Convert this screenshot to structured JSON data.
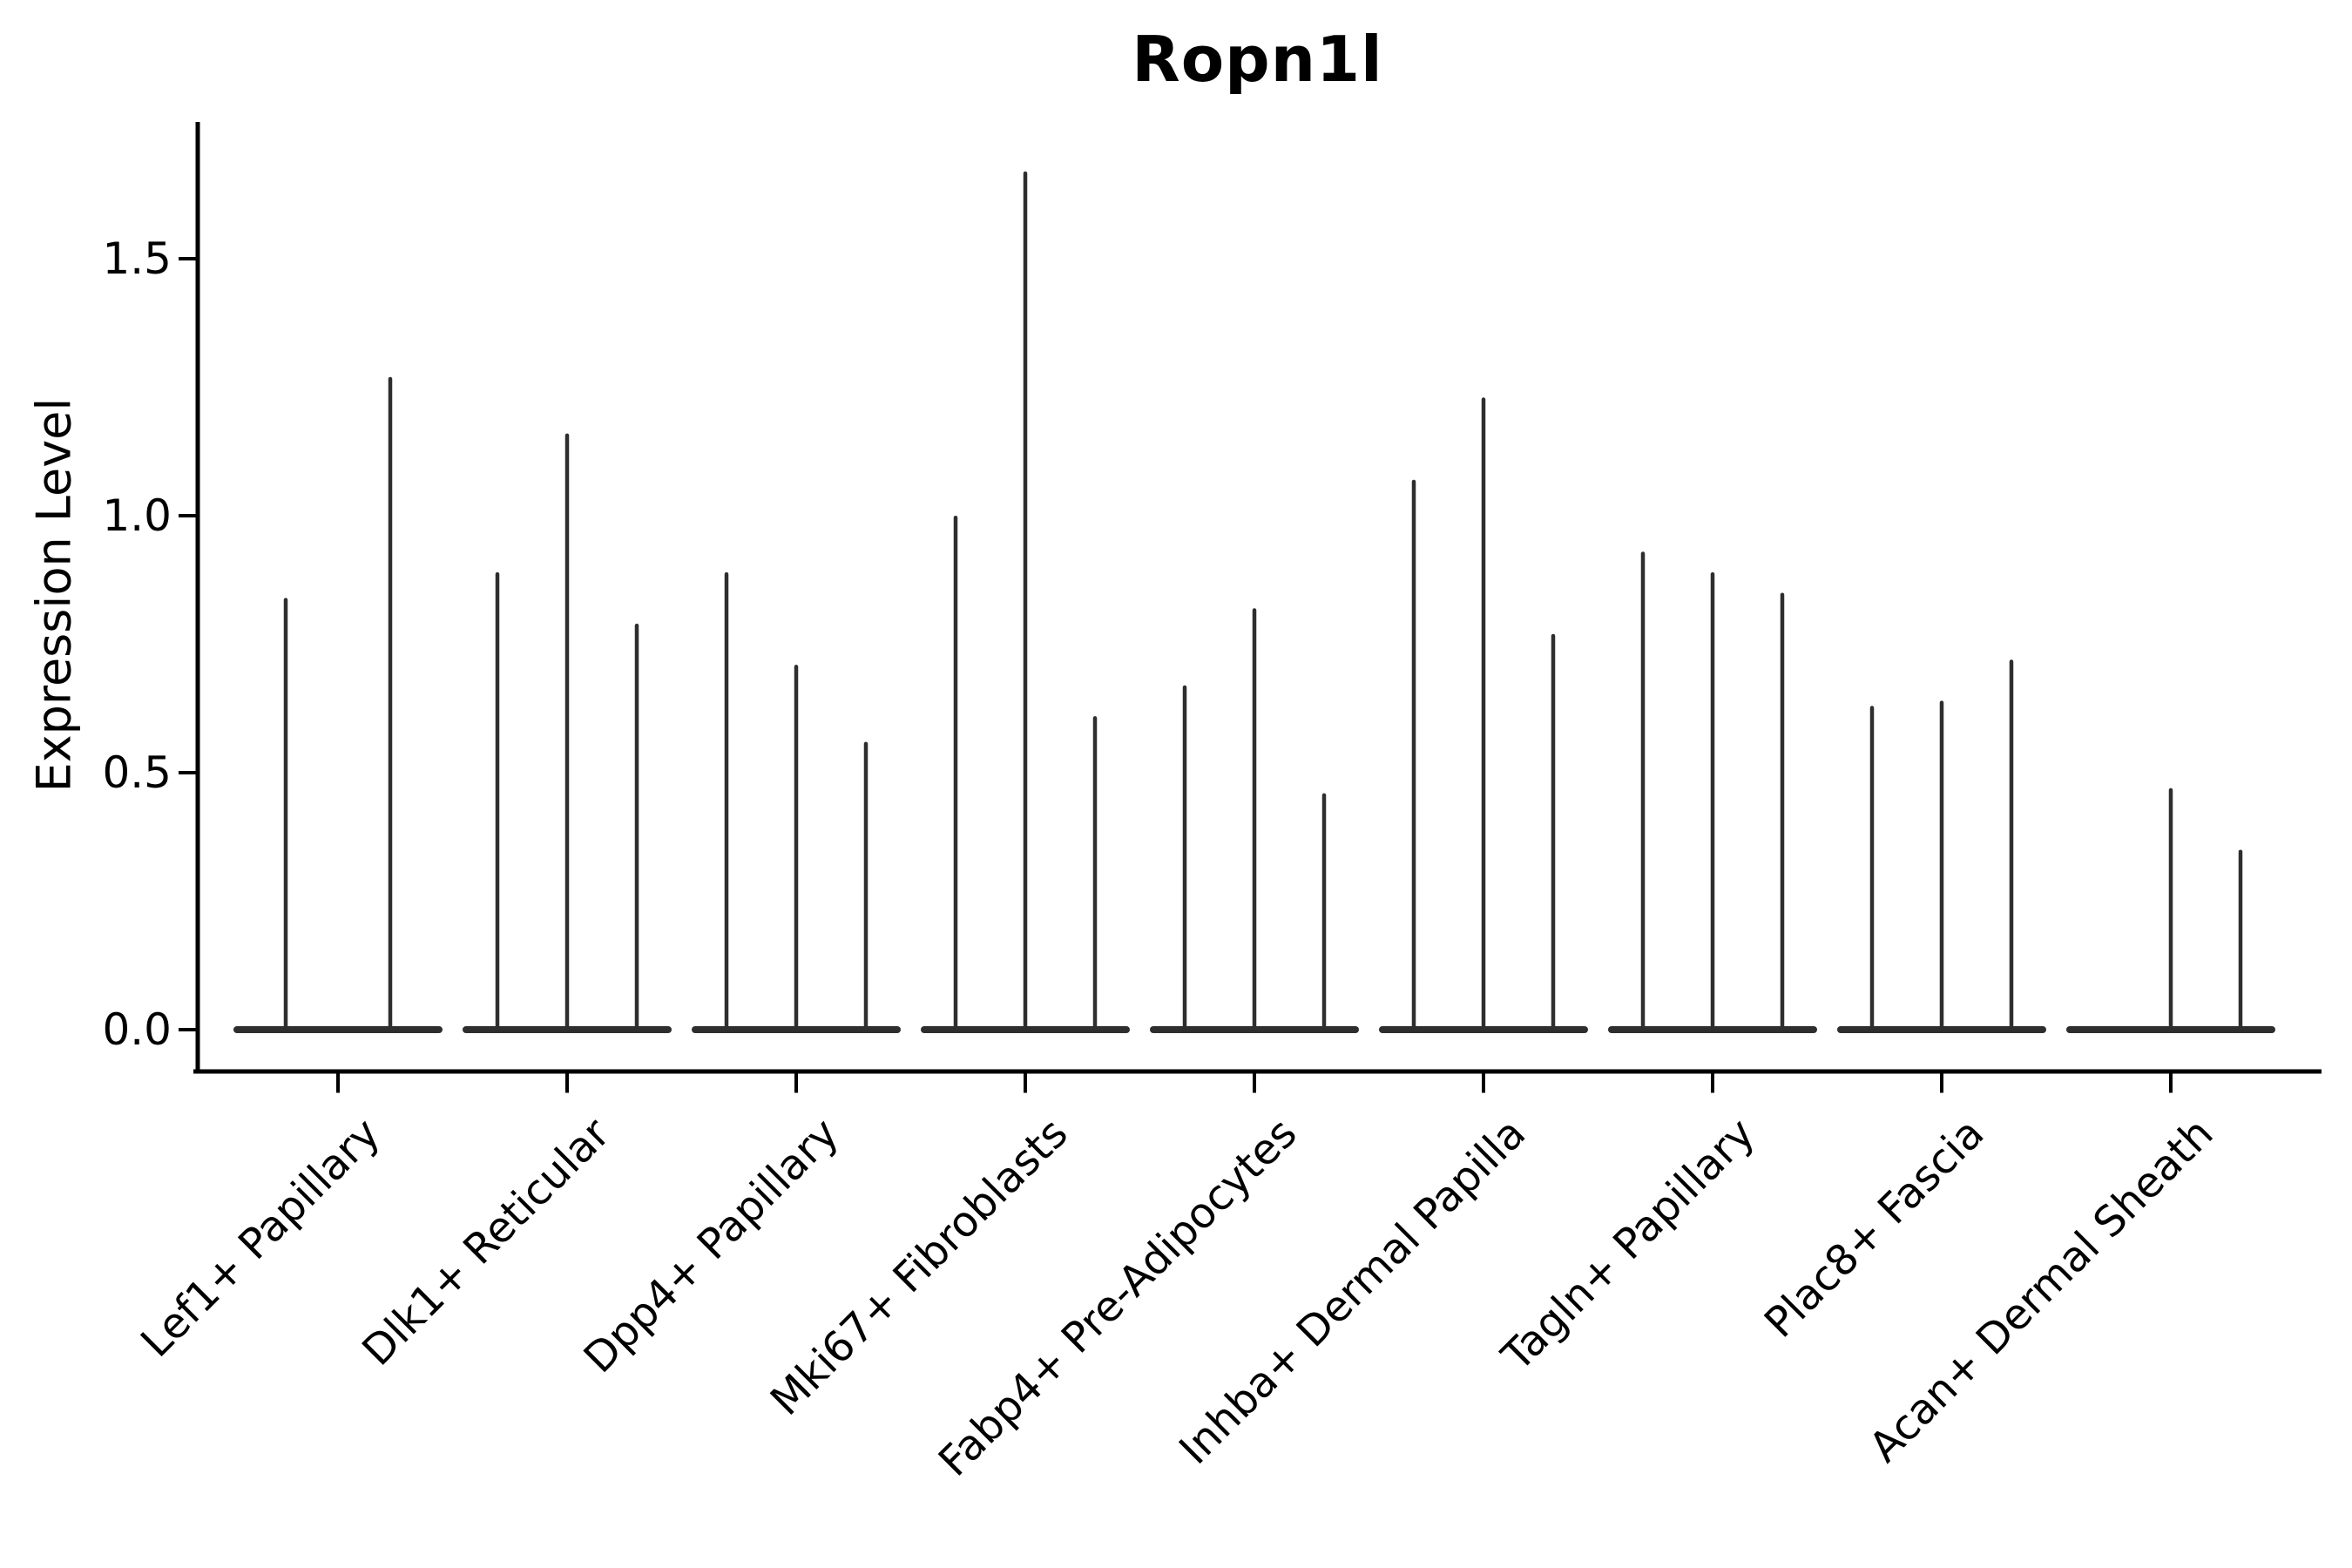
{
  "figure": {
    "background_color": "#ffffff"
  },
  "chart_data": {
    "type": "violin",
    "title": "Ropn1l",
    "xlabel": "",
    "ylabel": "Expression Level",
    "ylim": [
      -0.08,
      1.77
    ],
    "yticks": [
      0.0,
      0.5,
      1.0,
      1.5
    ],
    "ytick_labels": [
      "0.0",
      "0.5",
      "1.0",
      "1.5"
    ],
    "grid": false,
    "legend": false,
    "categories": [
      "Lef1+ Papillary",
      "Dlk1+ Reticular",
      "Dpp4+ Papillary",
      "Mki67+ Fibroblasts",
      "Fabp4+ Pre-Adipocytes",
      "Inhba+ Dermal Papilla",
      "Tagln+ Papillary",
      "Plac8+ Fascia",
      "Acan+ Dermal Sheath"
    ],
    "groups": [
      {
        "label": "Lef1+ Papillary",
        "violin_max_values": [
          0.84,
          1.27
        ]
      },
      {
        "label": "Dlk1+ Reticular",
        "violin_max_values": [
          0.89,
          1.16,
          0.79
        ]
      },
      {
        "label": "Dpp4+ Papillary",
        "violin_max_values": [
          0.89,
          0.71,
          0.56
        ]
      },
      {
        "label": "Mki67+ Fibroblasts",
        "violin_max_values": [
          1.0,
          1.67,
          0.61
        ]
      },
      {
        "label": "Fabp4+ Pre-Adipocytes",
        "violin_max_values": [
          0.67,
          0.82,
          0.46
        ]
      },
      {
        "label": "Inhba+ Dermal Papilla",
        "violin_max_values": [
          1.07,
          1.23,
          0.77
        ]
      },
      {
        "label": "Tagln+ Papillary",
        "violin_max_values": [
          0.93,
          0.89,
          0.85
        ]
      },
      {
        "label": "Plac8+ Fascia",
        "violin_max_values": [
          0.63,
          0.64,
          0.72
        ]
      },
      {
        "label": "Acan+ Dermal Sheath",
        "violin_max_values": [
          0.0,
          0.47,
          0.35
        ]
      }
    ],
    "style": {
      "violin_color": "#2e2e2e",
      "axis_color": "#000000",
      "text_color": "#000000"
    }
  }
}
